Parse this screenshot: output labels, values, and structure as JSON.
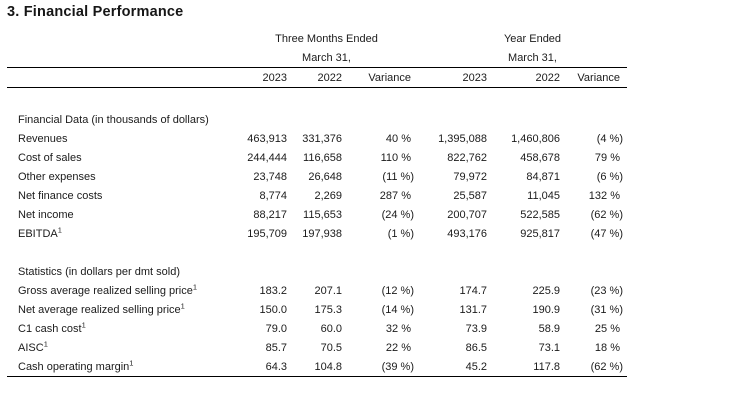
{
  "page": {
    "title": "3. Financial Performance"
  },
  "table": {
    "groups": [
      {
        "line1": "Three Months Ended",
        "line2": "March 31,"
      },
      {
        "line1": "Year Ended",
        "line2": "March 31,"
      }
    ],
    "column_headers": [
      "2023",
      "2022",
      "Variance",
      "2023",
      "2022",
      "Variance"
    ],
    "footnote_marker": "1",
    "rows": [
      {
        "type": "section",
        "label": "Financial Data (in thousands of dollars)"
      },
      {
        "type": "data",
        "label": "Revenues",
        "sup": "",
        "values": [
          "463,913",
          "331,376",
          "40 %",
          "1,395,088",
          "1,460,806",
          "(4 %)"
        ]
      },
      {
        "type": "data",
        "label": "Cost of sales",
        "sup": "",
        "values": [
          "244,444",
          "116,658",
          "110 %",
          "822,762",
          "458,678",
          "79 %"
        ]
      },
      {
        "type": "data",
        "label": "Other expenses",
        "sup": "",
        "values": [
          "23,748",
          "26,648",
          "(11 %)",
          "79,972",
          "84,871",
          "(6 %)"
        ]
      },
      {
        "type": "data",
        "label": "Net finance costs",
        "sup": "",
        "values": [
          "8,774",
          "2,269",
          "287 %",
          "25,587",
          "11,045",
          "132 %"
        ]
      },
      {
        "type": "data",
        "label": "Net income",
        "sup": "",
        "values": [
          "88,217",
          "115,653",
          "(24 %)",
          "200,707",
          "522,585",
          "(62 %)"
        ]
      },
      {
        "type": "data",
        "label": "EBITDA",
        "sup": "1",
        "values": [
          "195,709",
          "197,938",
          "(1 %)",
          "493,176",
          "925,817",
          "(47 %)"
        ]
      },
      {
        "type": "spacer"
      },
      {
        "type": "section",
        "label": "Statistics (in dollars per dmt sold)"
      },
      {
        "type": "data",
        "label": "Gross average realized selling price",
        "sup": "1",
        "values": [
          "183.2",
          "207.1",
          "(12 %)",
          "174.7",
          "225.9",
          "(23 %)"
        ]
      },
      {
        "type": "data",
        "label": "Net average realized selling price",
        "sup": "1",
        "values": [
          "150.0",
          "175.3",
          "(14 %)",
          "131.7",
          "190.9",
          "(31 %)"
        ]
      },
      {
        "type": "data",
        "label": "C1 cash cost",
        "sup": "1",
        "values": [
          "79.0",
          "60.0",
          "32 %",
          "73.9",
          "58.9",
          "25 %"
        ]
      },
      {
        "type": "data",
        "label": "AISC",
        "sup": "1",
        "values": [
          "85.7",
          "70.5",
          "22 %",
          "86.5",
          "73.1",
          "18 %"
        ]
      },
      {
        "type": "data",
        "label": "Cash operating margin",
        "sup": "1",
        "values": [
          "64.3",
          "104.8",
          "(39 %)",
          "45.2",
          "117.8",
          "(62 %)"
        ]
      }
    ]
  }
}
